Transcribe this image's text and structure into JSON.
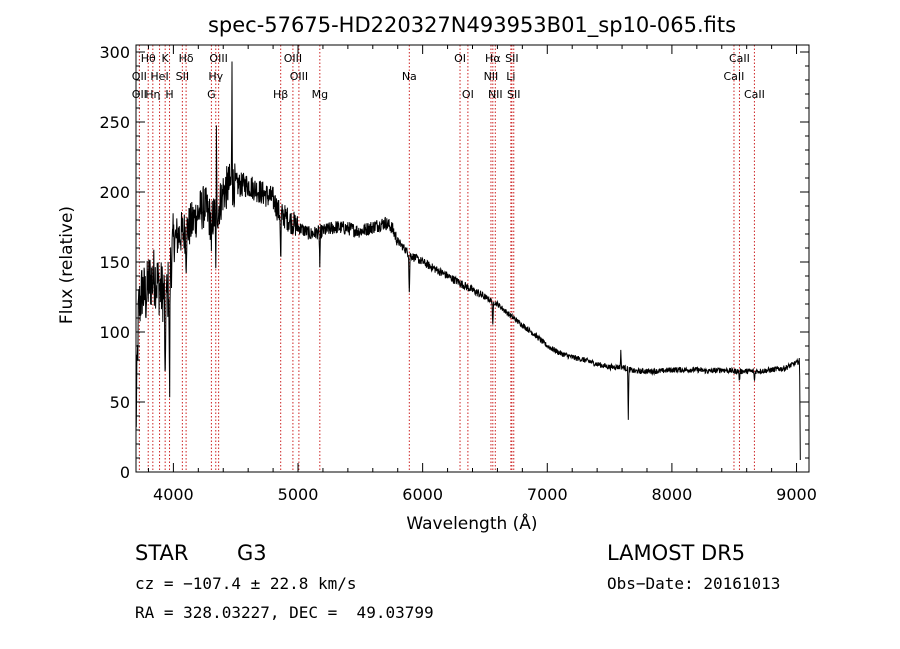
{
  "chart_data": {
    "type": "line",
    "title": "spec-57675-HD220327N493953B01_sp10-065.fits",
    "xlabel": "Wavelength (Å)",
    "ylabel": "Flux (relative)",
    "xlim": [
      3700,
      9100
    ],
    "ylim": [
      0,
      305
    ],
    "xticks": [
      4000,
      5000,
      6000,
      7000,
      8000,
      9000
    ],
    "yticks": [
      0,
      50,
      100,
      150,
      200,
      250,
      300
    ],
    "line_color": "#000000",
    "marker_color": "#cc2222",
    "continuum": {
      "x": [
        3700,
        3720,
        3750,
        3780,
        3800,
        3850,
        3900,
        3950,
        4000,
        4050,
        4100,
        4150,
        4200,
        4250,
        4300,
        4350,
        4400,
        4450,
        4500,
        4600,
        4700,
        4800,
        4850,
        4900,
        5000,
        5100,
        5200,
        5300,
        5400,
        5500,
        5600,
        5700,
        5750,
        5800,
        5900,
        6000,
        6100,
        6200,
        6300,
        6400,
        6500,
        6600,
        6700,
        6800,
        6900,
        7000,
        7100,
        7200,
        7300,
        7400,
        7500,
        7600,
        7700,
        7800,
        7900,
        8000,
        8100,
        8200,
        8300,
        8400,
        8500,
        8600,
        8700,
        8800,
        8900,
        8950,
        9000,
        9030
      ],
      "y": [
        30,
        115,
        130,
        125,
        135,
        140,
        130,
        125,
        165,
        170,
        172,
        178,
        185,
        190,
        180,
        185,
        200,
        205,
        205,
        205,
        200,
        195,
        185,
        182,
        175,
        170,
        172,
        175,
        174,
        172,
        175,
        178,
        175,
        165,
        155,
        150,
        145,
        140,
        135,
        130,
        125,
        120,
        112,
        105,
        98,
        90,
        85,
        82,
        80,
        77,
        75,
        75,
        72,
        72,
        72,
        73,
        73,
        73,
        72,
        73,
        72,
        72,
        72,
        73,
        74,
        76,
        78,
        80
      ]
    },
    "absorption_features": [
      {
        "x": 3934,
        "depth": 90
      },
      {
        "x": 3969,
        "depth": 95
      },
      {
        "x": 4102,
        "depth": 20
      },
      {
        "x": 4305,
        "depth": 30
      },
      {
        "x": 4340,
        "depth": 45
      },
      {
        "x": 4861,
        "depth": 40
      },
      {
        "x": 5175,
        "depth": 25
      },
      {
        "x": 5893,
        "depth": 30
      },
      {
        "x": 6563,
        "depth": 20
      },
      {
        "x": 7650,
        "depth": 35
      },
      {
        "x": 8542,
        "depth": 8
      },
      {
        "x": 8662,
        "depth": 8
      },
      {
        "x": 9030,
        "depth": 70
      }
    ],
    "emission_features": [
      {
        "x": 4470,
        "height": 95
      },
      {
        "x": 4345,
        "height": 60
      },
      {
        "x": 7590,
        "height": 14
      }
    ],
    "lines": [
      {
        "label": "Hθ",
        "x": 3798,
        "row": 0
      },
      {
        "label": "K",
        "x": 3934,
        "row": 0
      },
      {
        "label": "Hδ",
        "x": 4102,
        "row": 0
      },
      {
        "label": "OIII",
        "x": 4363,
        "row": 0
      },
      {
        "label": "OIII",
        "x": 4959,
        "row": 0
      },
      {
        "label": "OI",
        "x": 6300,
        "row": 0
      },
      {
        "label": "Hα",
        "x": 6563,
        "row": 0
      },
      {
        "label": "SII",
        "x": 6716,
        "row": 0
      },
      {
        "label": "CaII",
        "x": 8542,
        "row": 0
      },
      {
        "label": "OII",
        "x": 3727,
        "row": 1
      },
      {
        "label": "HeI",
        "x": 3889,
        "row": 1
      },
      {
        "label": "SII",
        "x": 4072,
        "row": 1
      },
      {
        "label": "Hγ",
        "x": 4340,
        "row": 1
      },
      {
        "label": "OIII",
        "x": 5007,
        "row": 1
      },
      {
        "label": "Na",
        "x": 5893,
        "row": 1
      },
      {
        "label": "NII",
        "x": 6548,
        "row": 1
      },
      {
        "label": "Li",
        "x": 6708,
        "row": 1
      },
      {
        "label": "CaII",
        "x": 8498,
        "row": 1
      },
      {
        "label": "OII",
        "x": 3727,
        "row": 2
      },
      {
        "label": "Hη",
        "x": 3835,
        "row": 2
      },
      {
        "label": "H",
        "x": 3969,
        "row": 2
      },
      {
        "label": "G",
        "x": 4305,
        "row": 2
      },
      {
        "label": "Hβ",
        "x": 4861,
        "row": 2
      },
      {
        "label": "Mg",
        "x": 5175,
        "row": 2
      },
      {
        "label": "OI",
        "x": 6363,
        "row": 2
      },
      {
        "label": "NII",
        "x": 6583,
        "row": 2
      },
      {
        "label": "SII",
        "x": 6731,
        "row": 2
      },
      {
        "label": "CaII",
        "x": 8662,
        "row": 2
      }
    ],
    "marker_x": [
      3727,
      3798,
      3835,
      3889,
      3934,
      3969,
      4072,
      4102,
      4305,
      4340,
      4363,
      4861,
      4959,
      5007,
      5175,
      5893,
      6300,
      6363,
      6548,
      6563,
      6583,
      6708,
      6716,
      6731,
      8498,
      8542,
      8662
    ]
  },
  "info": {
    "object_class": "STAR",
    "subclass": "G3",
    "survey": "LAMOST DR5",
    "redshift": "cz = −107.4 ± 22.8 km/s",
    "obs_date": "Obs−Date: 20161013",
    "coords": "RA = 328.03227, DEC =  49.03799"
  }
}
